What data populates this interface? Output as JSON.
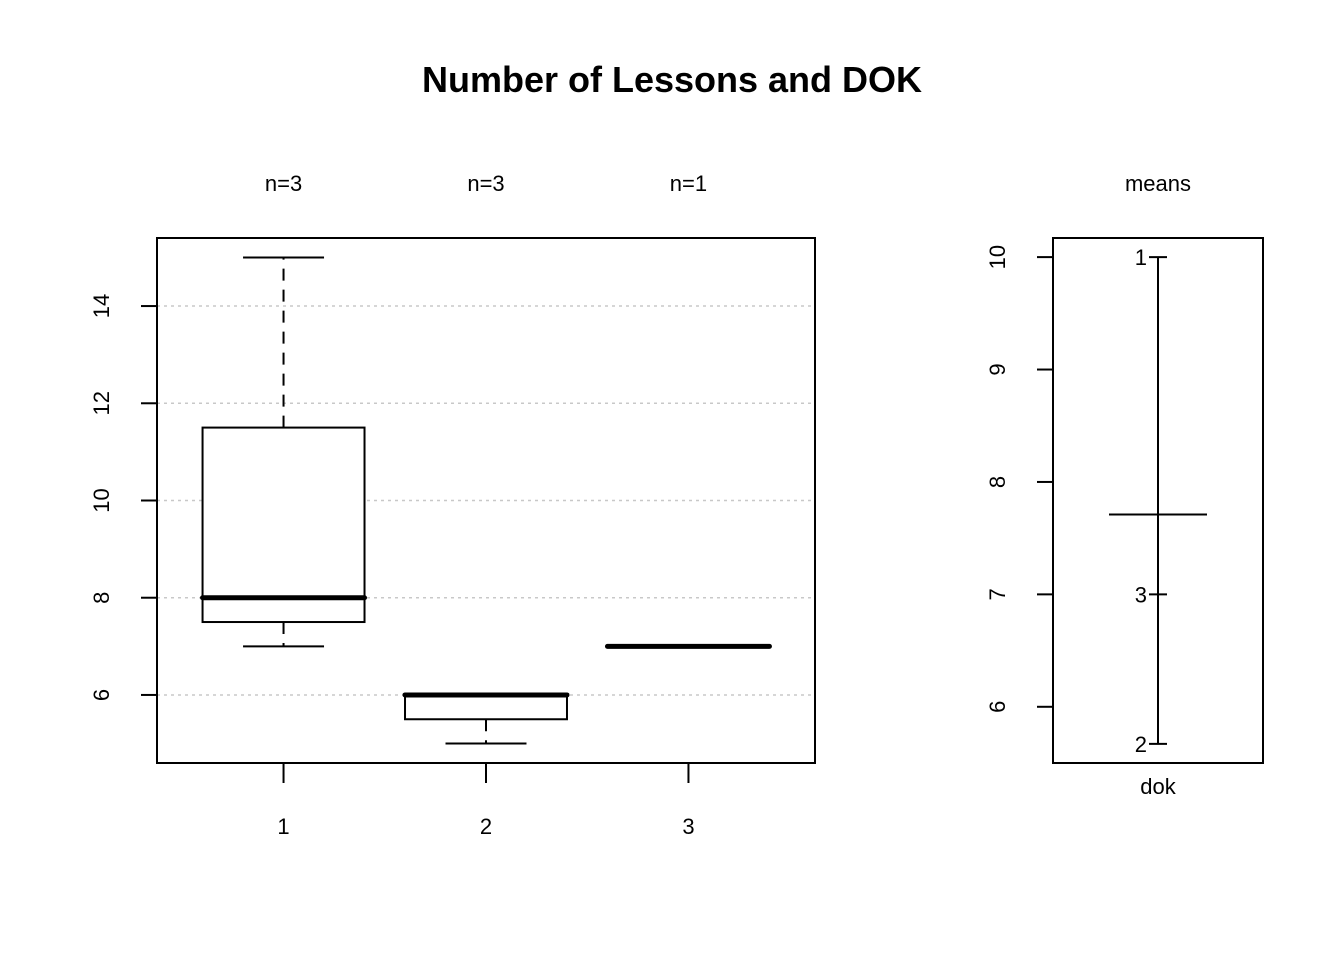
{
  "title": "Number of Lessons and DOK",
  "chart_data": [
    {
      "type": "boxplot",
      "categories": [
        "1",
        "2",
        "3"
      ],
      "counts": [
        "n=3",
        "n=3",
        "n=1"
      ],
      "boxes": [
        {
          "category": "1",
          "min": 7,
          "q1": 7.5,
          "median": 8,
          "q3": 11.5,
          "max": 15
        },
        {
          "category": "2",
          "min": 5,
          "q1": 5.5,
          "median": 6,
          "q3": 6,
          "max": 6
        },
        {
          "category": "3",
          "min": 7,
          "q1": 7,
          "median": 7,
          "q3": 7,
          "max": 7
        }
      ],
      "yticks": [
        6,
        8,
        10,
        12,
        14
      ],
      "ylim": [
        4.6,
        15.4
      ],
      "grid": "horizontal-dotted"
    },
    {
      "type": "means",
      "title": "means",
      "xlabel": "dok",
      "overall_mean": 7.71,
      "group_means": [
        {
          "label": "1",
          "value": 10.0
        },
        {
          "label": "3",
          "value": 7.0
        },
        {
          "label": "2",
          "value": 5.67
        }
      ],
      "yticks": [
        6,
        7,
        8,
        9,
        10
      ],
      "ylim": [
        5.5,
        10.17
      ]
    }
  ]
}
